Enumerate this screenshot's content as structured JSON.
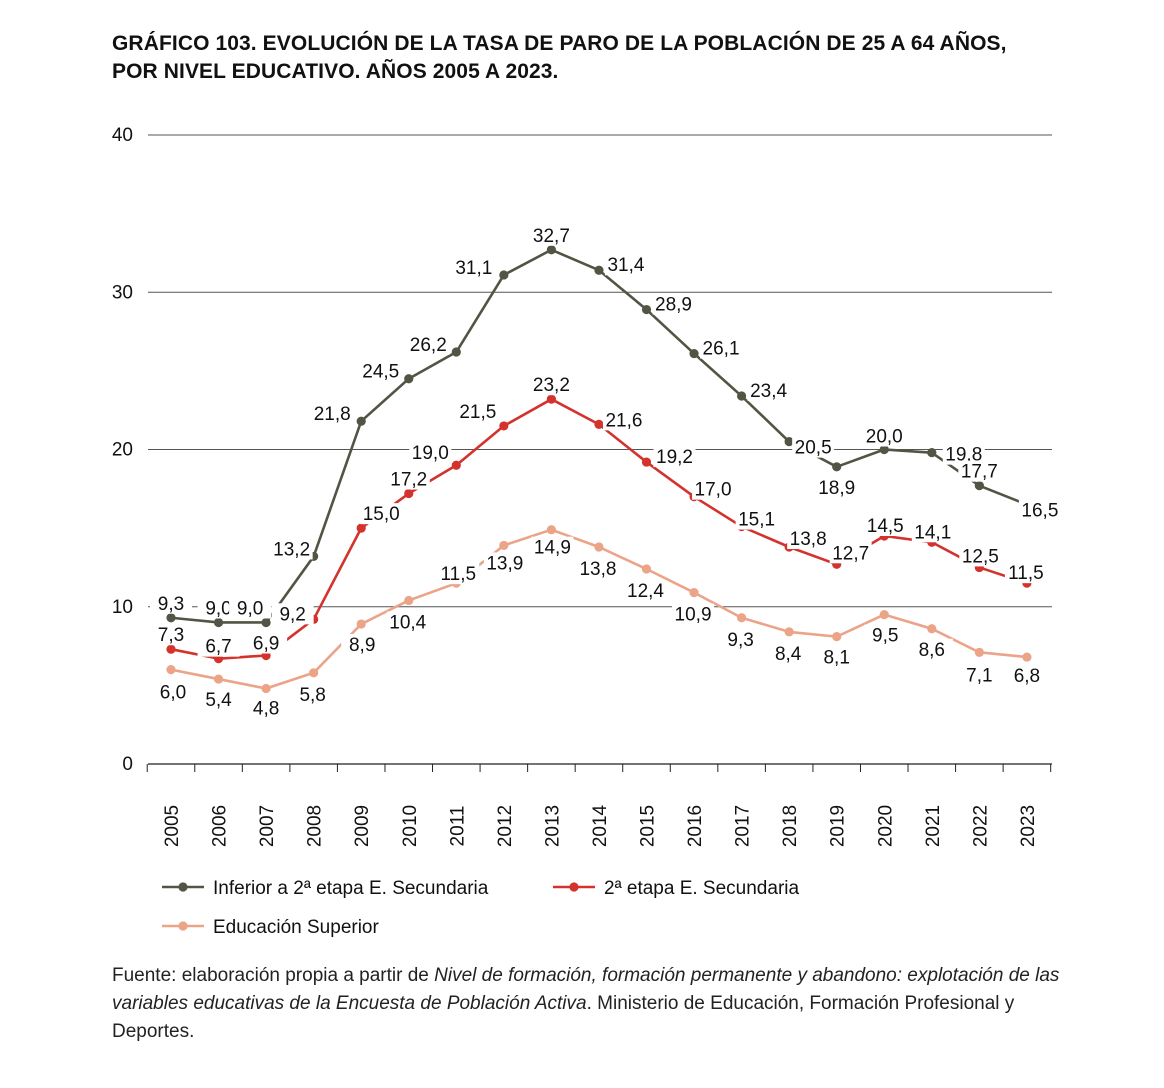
{
  "title": {
    "line1": "GRÁFICO 103. EVOLUCIÓN DE LA TASA DE PARO DE LA POBLACIÓN DE 25 A 64 AÑOS,",
    "line2": "POR NIVEL EDUCATIVO. AÑOS 2005 A 2023."
  },
  "source": {
    "prefix": "Fuente: elaboración propia a partir de ",
    "italic": "Nivel de formación, formación permanente y abandono: explotación de las variables educativas de la Encuesta de Población Activa",
    "suffix": ". Ministerio de Educación, Formación Profesional y Deportes."
  },
  "chart_data": {
    "type": "line",
    "categories": [
      "2005",
      "2006",
      "2007",
      "2008",
      "2009",
      "2010",
      "2011",
      "2012",
      "2013",
      "2014",
      "2015",
      "2016",
      "2017",
      "2018",
      "2019",
      "2020",
      "2021",
      "2022",
      "2023"
    ],
    "ylim": [
      0,
      40
    ],
    "yticks": [
      0,
      10,
      20,
      30,
      40
    ],
    "grid": true,
    "legend_position": "bottom",
    "series": [
      {
        "name": "Inferior a 2ª etapa E. Secundaria",
        "color": "#545444",
        "values": [
          9.3,
          9.0,
          9.0,
          13.2,
          21.8,
          24.5,
          26.2,
          31.1,
          32.7,
          31.4,
          28.9,
          26.1,
          23.4,
          20.5,
          18.9,
          20.0,
          19.8,
          17.7,
          16.5
        ],
        "labels": [
          "9,3",
          "9,0",
          "9,0",
          "13,2",
          "21,8",
          "24,5",
          "26,2",
          "31,1",
          "32,7",
          "31,4",
          "28,9",
          "26,1",
          "23,4",
          "20,5",
          "18,9",
          "20,0",
          "19,8",
          "17,7",
          "16,5"
        ]
      },
      {
        "name": "2ª etapa E. Secundaria",
        "color": "#d3322d",
        "values": [
          7.3,
          6.7,
          6.9,
          9.2,
          15.0,
          17.2,
          19.0,
          21.5,
          23.2,
          21.6,
          19.2,
          17.0,
          15.1,
          13.8,
          12.7,
          14.5,
          14.1,
          12.5,
          11.5
        ],
        "labels": [
          "7,3",
          "6,7",
          "6,9",
          "9,2",
          "15,0",
          "17,2",
          "19,0",
          "21,5",
          "23,2",
          "21,6",
          "19,2",
          "17,0",
          "15,1",
          "13,8",
          "12,7",
          "14,5",
          "14,1",
          "12,5",
          "11,5"
        ]
      },
      {
        "name": "Educación Superior",
        "color": "#eba488",
        "values": [
          6.0,
          5.4,
          4.8,
          5.8,
          8.9,
          10.4,
          11.5,
          13.9,
          14.9,
          13.8,
          12.4,
          10.9,
          9.3,
          8.4,
          8.1,
          9.5,
          8.6,
          7.1,
          6.8
        ],
        "labels": [
          "6,0",
          "5,4",
          "4,8",
          "5,8",
          "8,9",
          "10,4",
          "11,5",
          "13,9",
          "14,9",
          "13,8",
          "12,4",
          "10,9",
          "9,3",
          "8,4",
          "8,1",
          "9,5",
          "8,6",
          "7,1",
          "6,8"
        ]
      }
    ]
  }
}
